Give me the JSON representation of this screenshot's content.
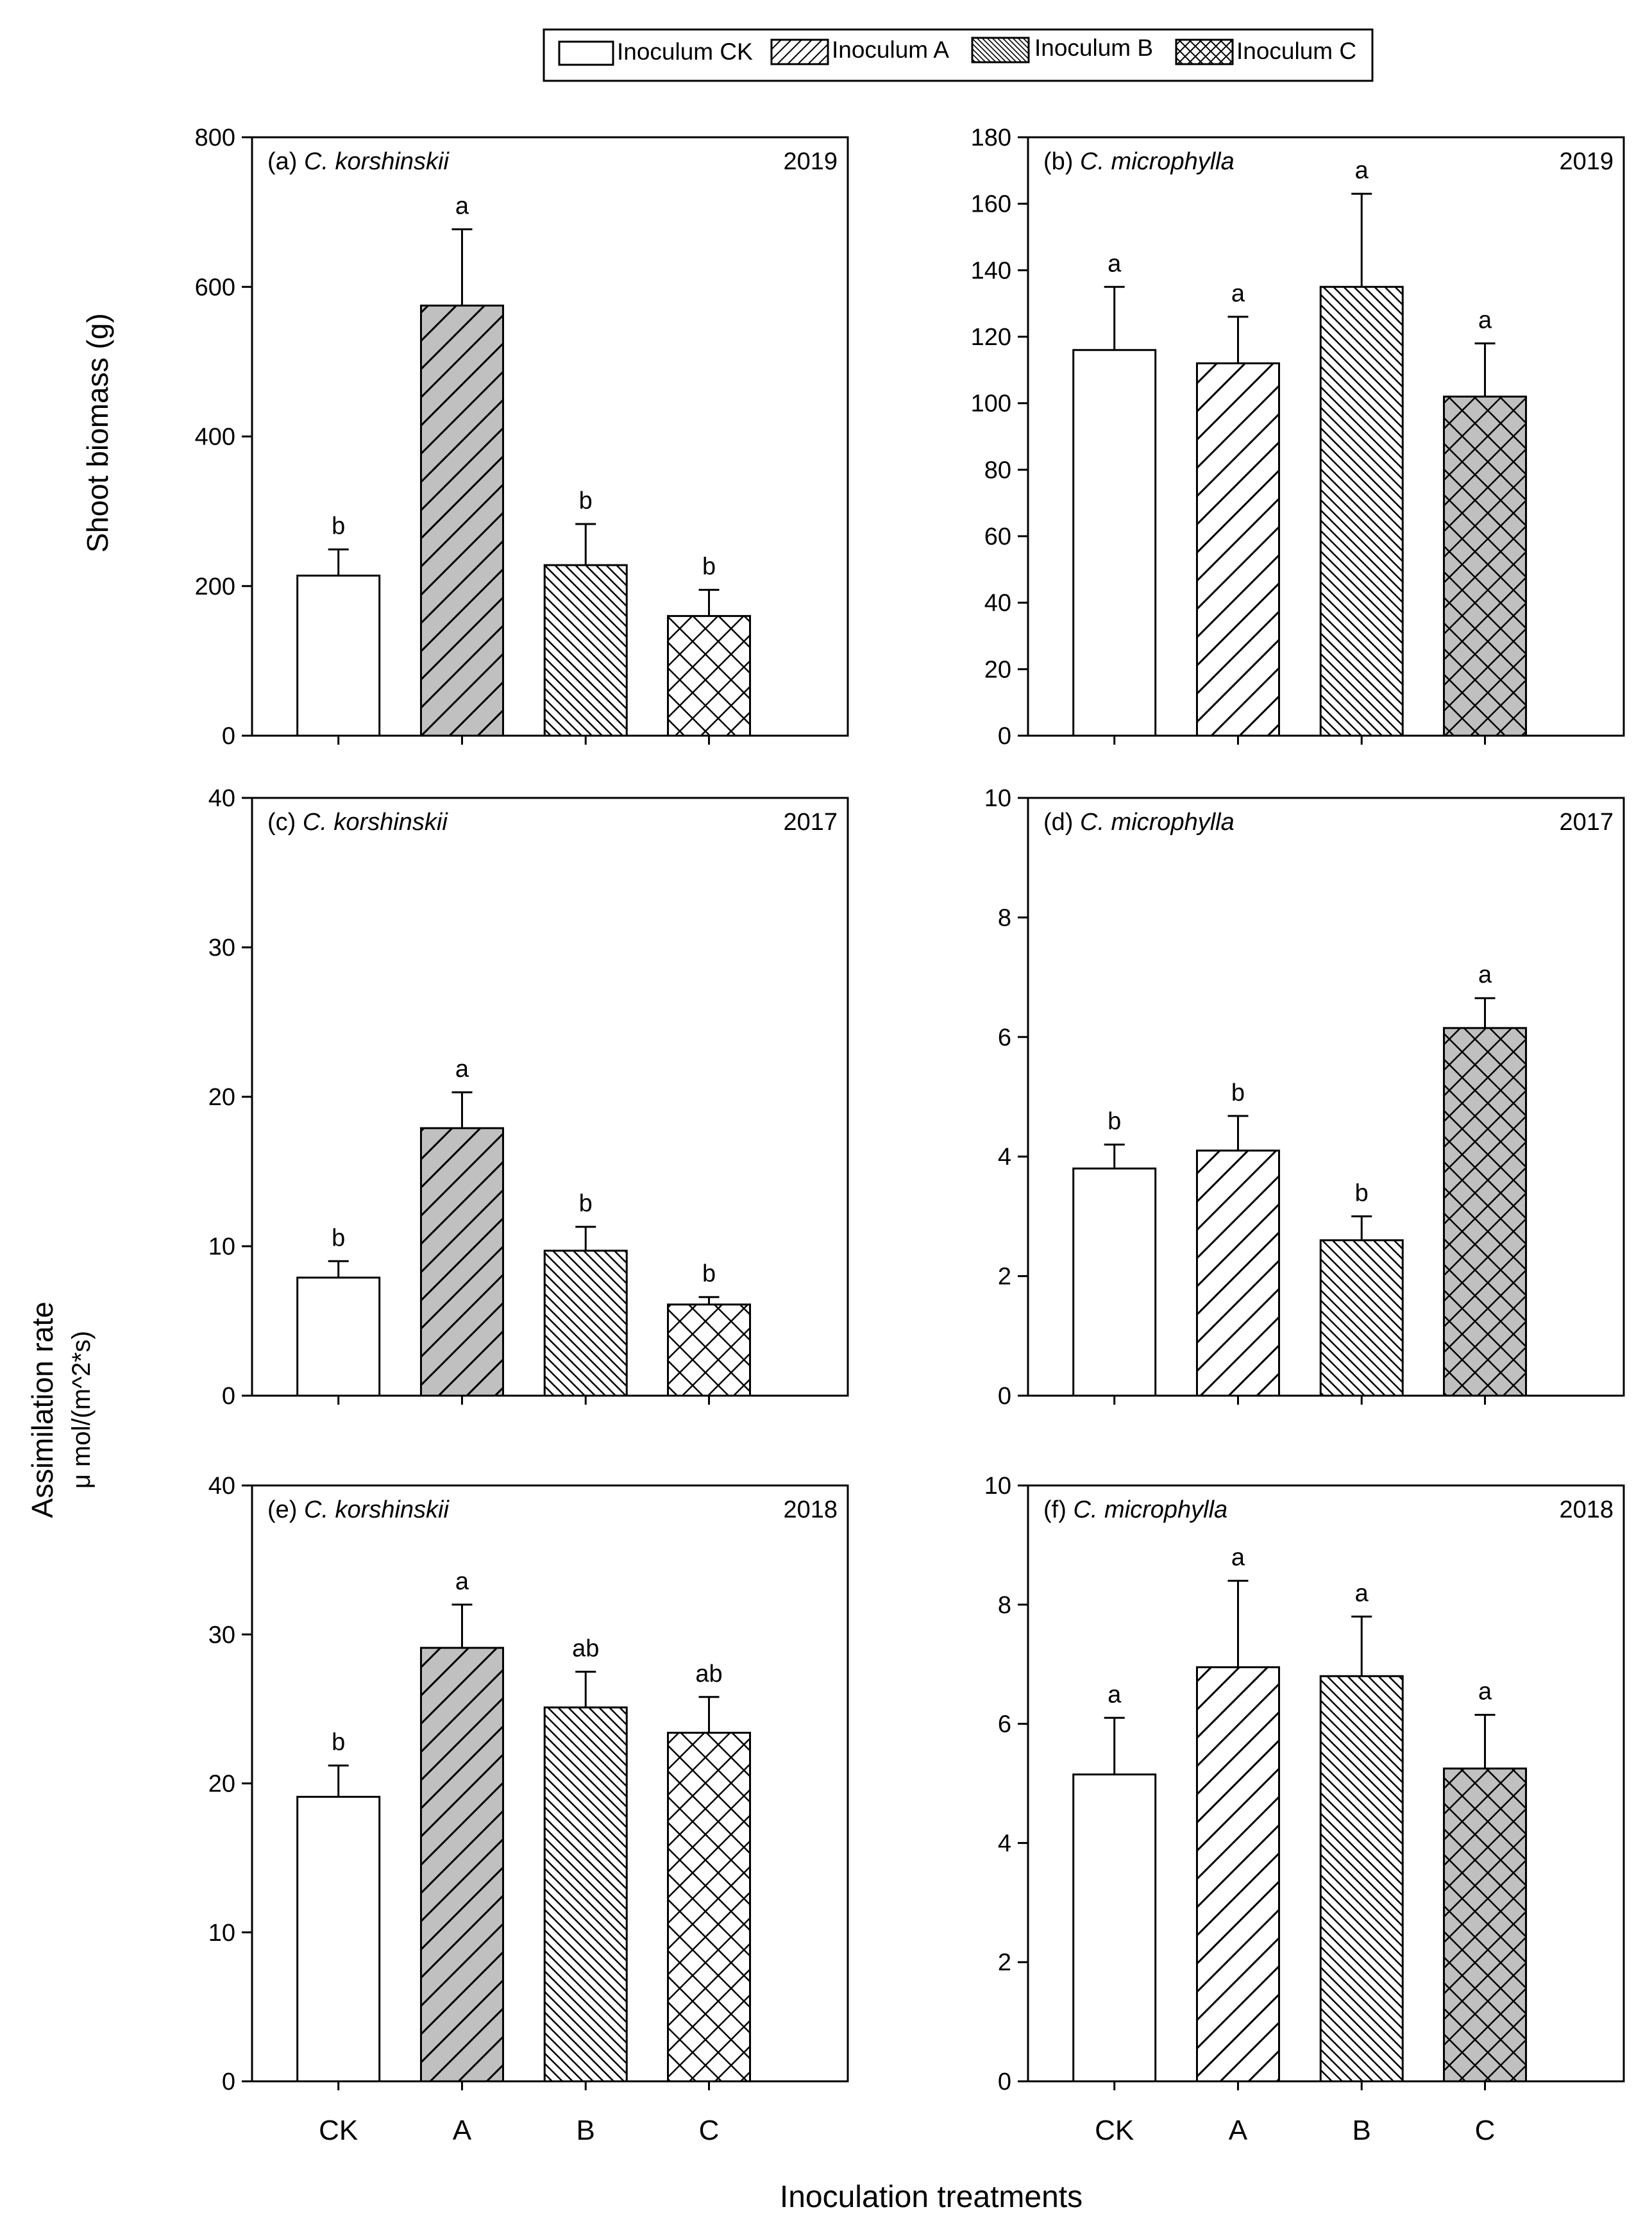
{
  "legend": [
    {
      "label": "Inoculum CK",
      "pattern": "none"
    },
    {
      "label": "Inoculum A",
      "pattern": "diag"
    },
    {
      "label": "Inoculum B",
      "pattern": "dense"
    },
    {
      "label": "Inoculum C",
      "pattern": "cross"
    }
  ],
  "ylabel_top": "Shoot biomass (g)",
  "ylabel_bottom_line1": "Assimilation rate",
  "ylabel_bottom_line2": "μ mol/(m^2*s)",
  "xlabel": "Inoculation treatments",
  "colors": {
    "gray_fill": "#c0c0c0",
    "white_fill": "#ffffff",
    "stroke": "#000000"
  },
  "chart_data": [
    {
      "id": "a",
      "type": "bar",
      "tag": "(a)",
      "species": "C. korshinskii",
      "year": "2019",
      "categories": [
        "CK",
        "A",
        "B",
        "C"
      ],
      "values": [
        214,
        575,
        228,
        160
      ],
      "errors": [
        35,
        102,
        55,
        35
      ],
      "letters": [
        "b",
        "a",
        "b",
        "b"
      ],
      "fills": [
        "white",
        "gray",
        "white",
        "white"
      ],
      "patterns": [
        "none",
        "diag",
        "dense",
        "cross"
      ],
      "ylim": [
        0,
        800
      ],
      "yticks": [
        0,
        200,
        400,
        600,
        800
      ],
      "ylabel": "Shoot biomass (g)"
    },
    {
      "id": "b",
      "type": "bar",
      "tag": "(b)",
      "species": "C. microphylla",
      "year": "2019",
      "categories": [
        "CK",
        "A",
        "B",
        "C"
      ],
      "values": [
        116,
        112,
        135,
        102
      ],
      "errors": [
        19,
        14,
        28,
        16
      ],
      "letters": [
        "a",
        "a",
        "a",
        "a"
      ],
      "fills": [
        "white",
        "white",
        "white",
        "gray"
      ],
      "patterns": [
        "none",
        "diag",
        "dense",
        "cross"
      ],
      "ylim": [
        0,
        180
      ],
      "yticks": [
        0,
        20,
        40,
        60,
        80,
        100,
        120,
        140,
        160,
        180
      ],
      "ylabel": ""
    },
    {
      "id": "c",
      "type": "bar",
      "tag": "(c)",
      "species": "C. korshinskii",
      "year": "2017",
      "categories": [
        "CK",
        "A",
        "B",
        "C"
      ],
      "values": [
        7.9,
        17.9,
        9.7,
        6.1
      ],
      "errors": [
        1.1,
        2.4,
        1.6,
        0.5
      ],
      "letters": [
        "b",
        "a",
        "b",
        "b"
      ],
      "fills": [
        "white",
        "gray",
        "white",
        "white"
      ],
      "patterns": [
        "none",
        "diag",
        "dense",
        "cross"
      ],
      "ylim": [
        0,
        40
      ],
      "yticks": [
        0,
        10,
        20,
        30,
        40
      ],
      "ylabel": ""
    },
    {
      "id": "d",
      "type": "bar",
      "tag": "(d)",
      "species": "C. microphylla",
      "year": "2017",
      "categories": [
        "CK",
        "A",
        "B",
        "C"
      ],
      "values": [
        3.8,
        4.1,
        2.6,
        6.15
      ],
      "errors": [
        0.4,
        0.58,
        0.4,
        0.5
      ],
      "letters": [
        "b",
        "b",
        "b",
        "a"
      ],
      "fills": [
        "white",
        "white",
        "white",
        "gray"
      ],
      "patterns": [
        "none",
        "diag",
        "dense",
        "cross"
      ],
      "ylim": [
        0,
        10
      ],
      "yticks": [
        0,
        2,
        4,
        6,
        8,
        10
      ],
      "ylabel": ""
    },
    {
      "id": "e",
      "type": "bar",
      "tag": "(e)",
      "species": "C. korshinskii",
      "year": "2018",
      "categories": [
        "CK",
        "A",
        "B",
        "C"
      ],
      "values": [
        19.1,
        29.1,
        25.1,
        23.4
      ],
      "errors": [
        2.1,
        2.9,
        2.4,
        2.4
      ],
      "letters": [
        "b",
        "a",
        "ab",
        "ab"
      ],
      "fills": [
        "white",
        "gray",
        "white",
        "white"
      ],
      "patterns": [
        "none",
        "diag",
        "dense",
        "cross"
      ],
      "ylim": [
        0,
        40
      ],
      "yticks": [
        0,
        10,
        20,
        30,
        40
      ],
      "ylabel": ""
    },
    {
      "id": "f",
      "type": "bar",
      "tag": "(f)",
      "species": "C. microphylla",
      "year": "2018",
      "categories": [
        "CK",
        "A",
        "B",
        "C"
      ],
      "values": [
        5.15,
        6.95,
        6.8,
        5.25
      ],
      "errors": [
        0.95,
        1.45,
        1.0,
        0.9
      ],
      "letters": [
        "a",
        "a",
        "a",
        "a"
      ],
      "fills": [
        "white",
        "white",
        "white",
        "gray"
      ],
      "patterns": [
        "none",
        "diag",
        "dense",
        "cross"
      ],
      "ylim": [
        0,
        10
      ],
      "yticks": [
        0,
        2,
        4,
        6,
        8,
        10
      ],
      "ylabel": ""
    }
  ]
}
